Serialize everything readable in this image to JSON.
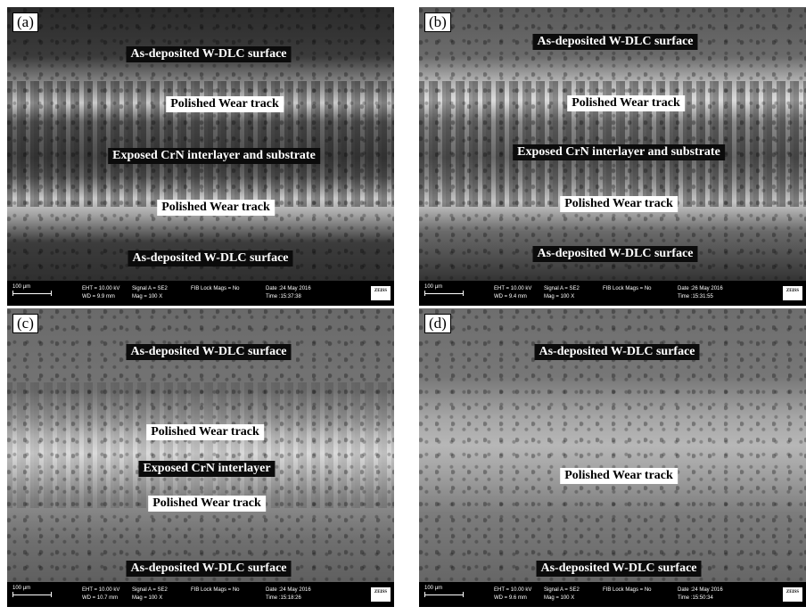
{
  "panels": [
    {
      "letter": "(a)",
      "labels": {
        "top": "As-deposited W-DLC surface",
        "track_upper": "Polished Wear track",
        "middle": "Exposed CrN interlayer and substrate",
        "track_lower": "Polished Wear track",
        "bottom": "As-deposited W-DLC surface"
      },
      "databar": {
        "scale": "100 µm",
        "eht": "EHT = 10.00 kV",
        "wd": "WD = 9.9 mm",
        "signal": "Signal A = SE2",
        "mag": "Mag = 100 X",
        "fib": "FIB Lock Mags = No",
        "date": "Date :24 May 2016",
        "time": "Time :15:37:38",
        "logo": "ZEISS"
      }
    },
    {
      "letter": "(b)",
      "labels": {
        "top": "As-deposited W-DLC surface",
        "track_upper": "Polished Wear track",
        "middle": "Exposed CrN interlayer and substrate",
        "track_lower": "Polished Wear track",
        "bottom": "As-deposited W-DLC surface"
      },
      "databar": {
        "scale": "100 µm",
        "eht": "EHT = 10.00 kV",
        "wd": "WD = 9.4 mm",
        "signal": "Signal A = SE2",
        "mag": "Mag = 100 X",
        "fib": "FIB Lock Mags = No",
        "date": "Date :26 May 2016",
        "time": "Time :15:31:55",
        "logo": "ZEISS"
      }
    },
    {
      "letter": "(c)",
      "labels": {
        "top": "As-deposited W-DLC surface",
        "track_upper": "Polished Wear track",
        "middle": "Exposed CrN interlayer",
        "track_lower": "Polished Wear track",
        "bottom": "As-deposited W-DLC surface"
      },
      "databar": {
        "scale": "100 µm",
        "eht": "EHT = 10.00 kV",
        "wd": "WD = 10.7 mm",
        "signal": "Signal A = SE2",
        "mag": "Mag = 100 X",
        "fib": "FIB Lock Mags = No",
        "date": "Date :24 May 2016",
        "time": "Time :15:18:26",
        "logo": "ZEISS"
      }
    },
    {
      "letter": "(d)",
      "labels": {
        "top": "As-deposited W-DLC surface",
        "middle": "Polished Wear track",
        "bottom": "As-deposited W-DLC surface"
      },
      "databar": {
        "scale": "100 µm",
        "eht": "EHT = 10.00 kV",
        "wd": "WD = 9.6 mm",
        "signal": "Signal A = SE2",
        "mag": "Mag = 100 X",
        "fib": "FIB Lock Mags = No",
        "date": "Date :24 May 2016",
        "time": "Time :15:50:34",
        "logo": "ZEISS"
      }
    }
  ]
}
